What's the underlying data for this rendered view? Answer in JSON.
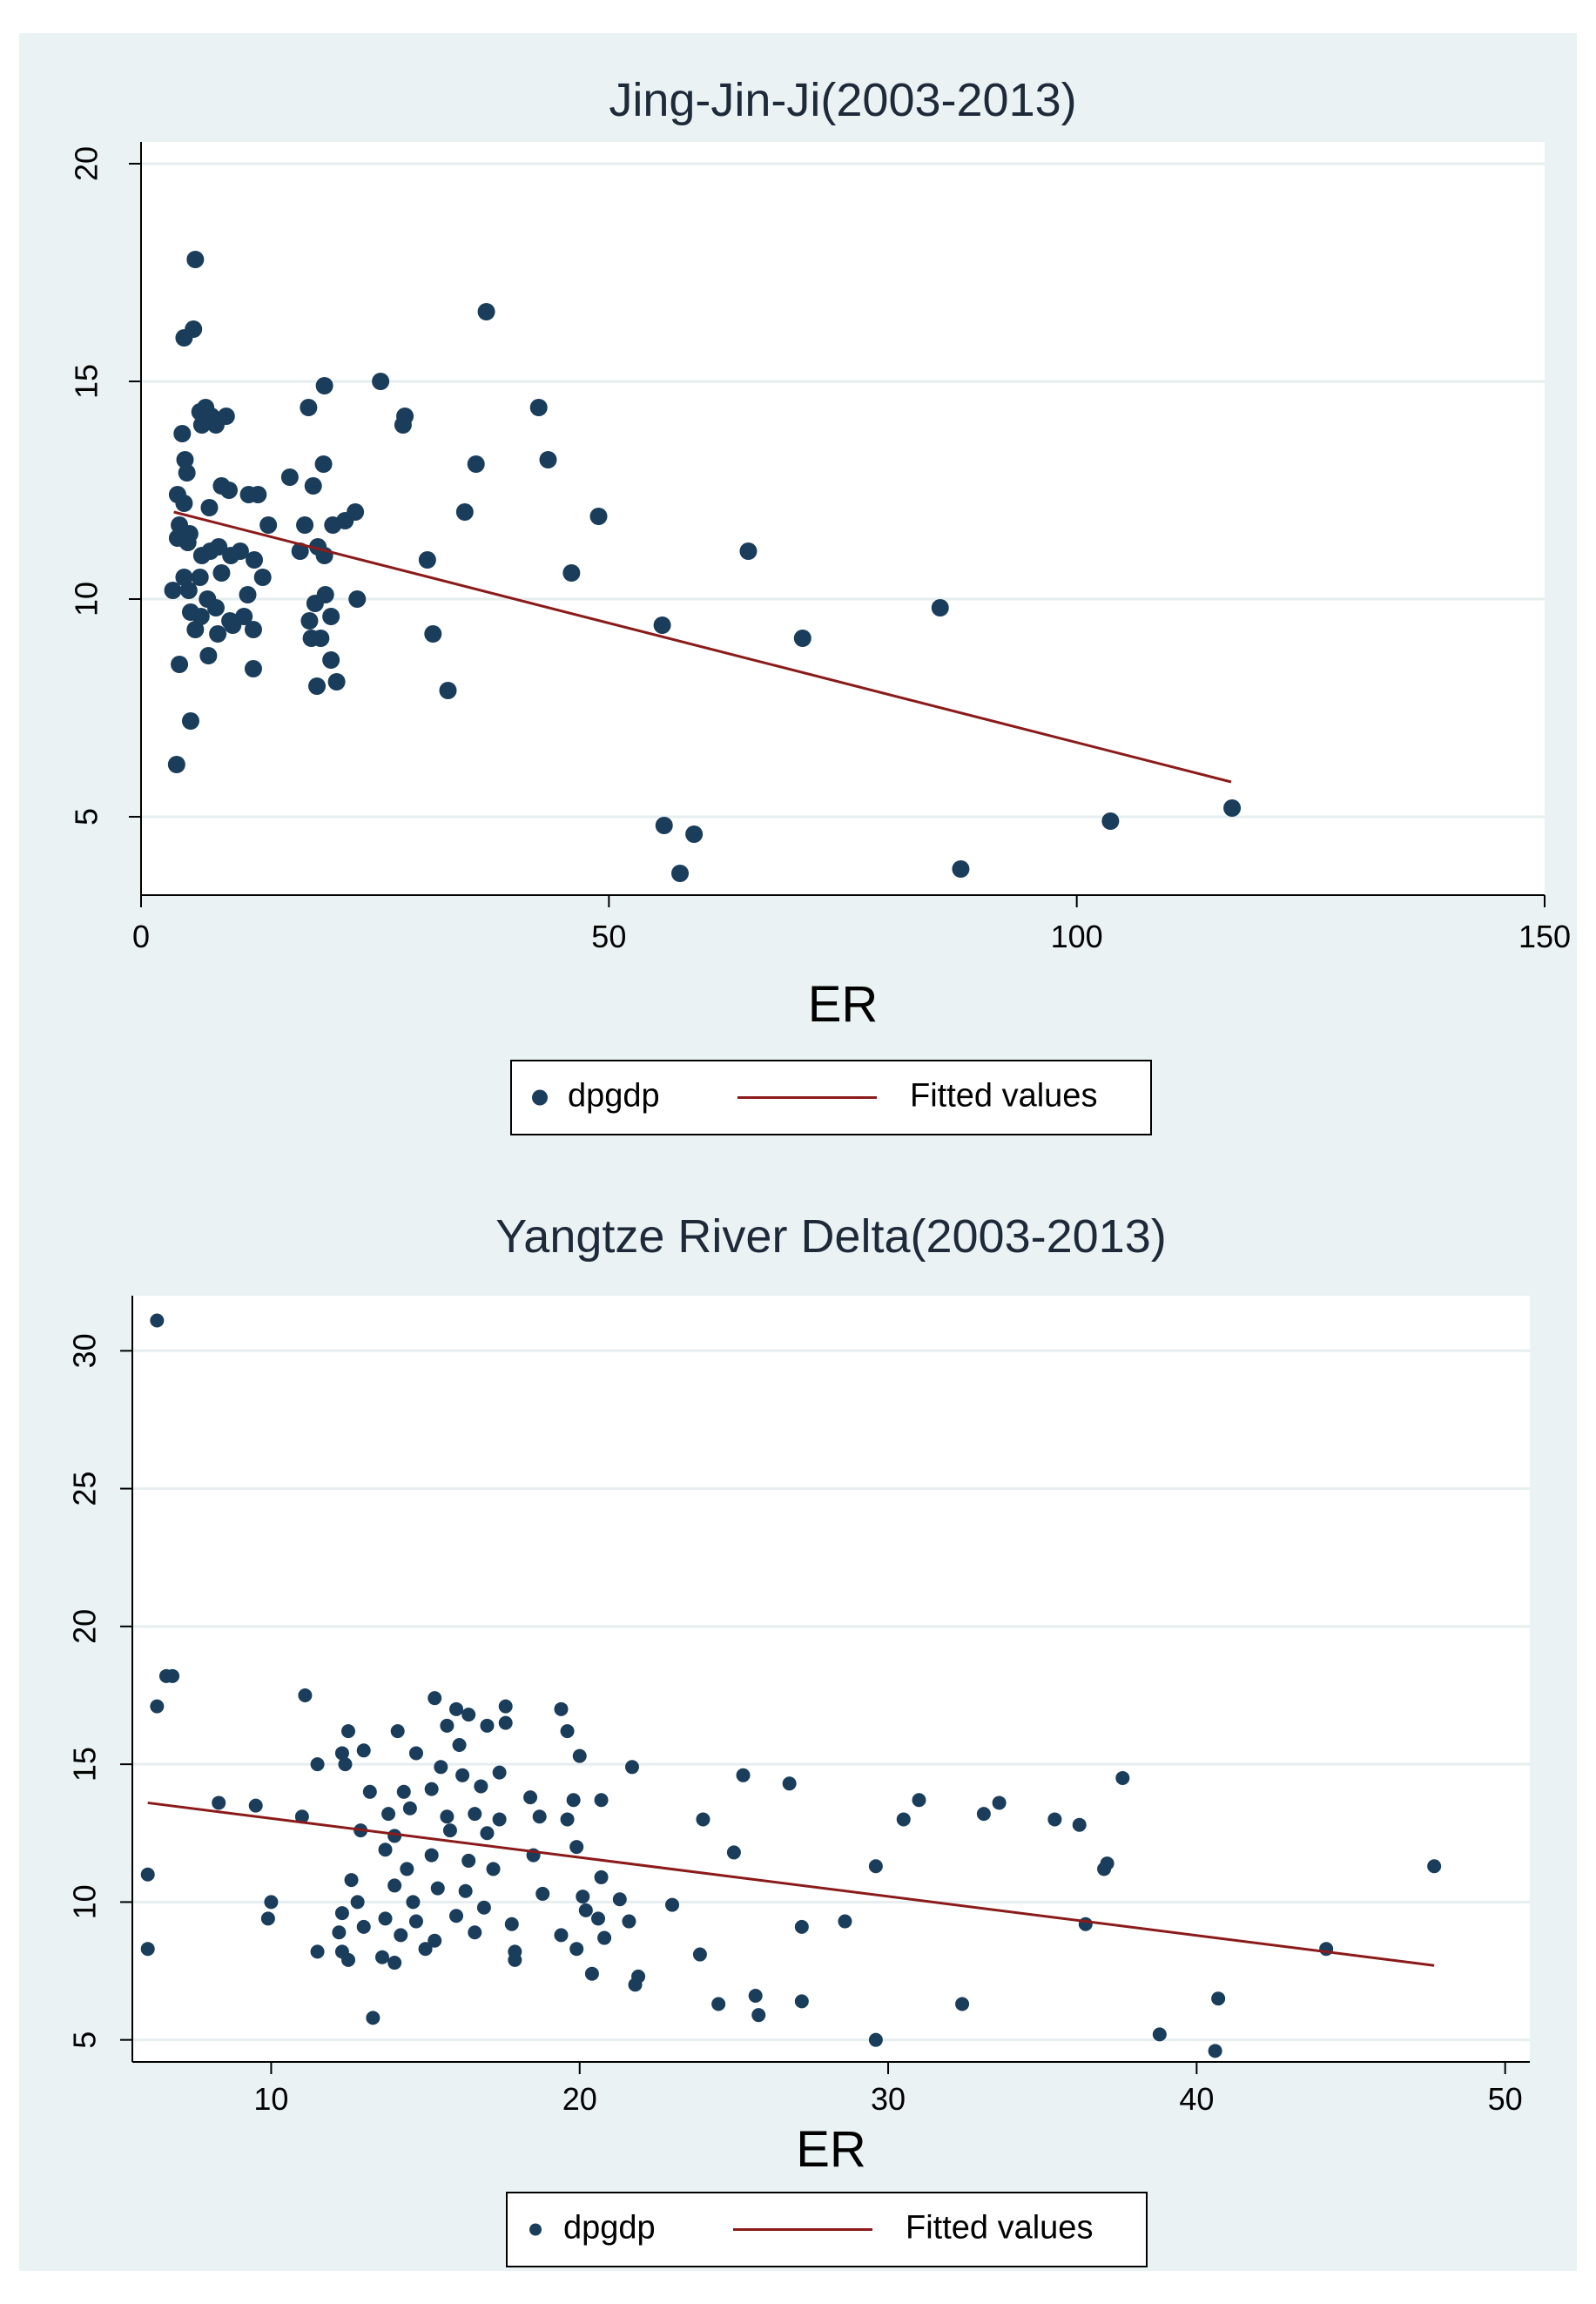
{
  "chart_data": [
    {
      "type": "scatter",
      "title": "Jing-Jin-Ji(2003-2013)",
      "xlabel": "ER",
      "ylabel": "",
      "xlim": [
        0,
        150
      ],
      "ylim": [
        3.2,
        20.5
      ],
      "xticks": [
        0,
        50,
        100,
        150
      ],
      "yticks": [
        5,
        10,
        15,
        20
      ],
      "grid": true,
      "legend_position": "bottom",
      "colors": {
        "points": "#1a3d5c",
        "fit": "#8b1a1a",
        "grid": "#e6eef0",
        "plot_bg": "#ffffff",
        "panel_bg": "#eaf2f3"
      },
      "legend": [
        "dpgdp",
        "Fitted values"
      ],
      "series": [
        {
          "name": "dpgdp",
          "kind": "scatter",
          "points": [
            [
              5.8,
              17.8
            ],
            [
              5.6,
              16.2
            ],
            [
              4.6,
              16.0
            ],
            [
              36.9,
              16.6
            ],
            [
              25.6,
              15.0
            ],
            [
              19.6,
              14.9
            ],
            [
              28.2,
              14.2
            ],
            [
              28.0,
              14.0
            ],
            [
              42.5,
              14.4
            ],
            [
              17.9,
              14.4
            ],
            [
              6.3,
              14.3
            ],
            [
              6.9,
              14.4
            ],
            [
              7.5,
              14.2
            ],
            [
              8.0,
              14.0
            ],
            [
              6.5,
              14.0
            ],
            [
              9.1,
              14.2
            ],
            [
              4.4,
              13.8
            ],
            [
              43.5,
              13.2
            ],
            [
              35.8,
              13.1
            ],
            [
              4.7,
              13.2
            ],
            [
              19.5,
              13.1
            ],
            [
              4.9,
              12.9
            ],
            [
              15.9,
              12.8
            ],
            [
              3.9,
              12.4
            ],
            [
              4.6,
              12.2
            ],
            [
              8.6,
              12.6
            ],
            [
              9.4,
              12.5
            ],
            [
              11.5,
              12.4
            ],
            [
              12.5,
              12.4
            ],
            [
              18.4,
              12.6
            ],
            [
              4.1,
              11.7
            ],
            [
              5.2,
              11.5
            ],
            [
              7.3,
              12.1
            ],
            [
              13.6,
              11.7
            ],
            [
              17.5,
              11.7
            ],
            [
              20.5,
              11.7
            ],
            [
              21.8,
              11.8
            ],
            [
              22.9,
              12.0
            ],
            [
              34.6,
              12.0
            ],
            [
              48.9,
              11.9
            ],
            [
              64.9,
              11.1
            ],
            [
              30.6,
              10.9
            ],
            [
              46.0,
              10.6
            ],
            [
              3.9,
              11.4
            ],
            [
              5.0,
              11.3
            ],
            [
              6.5,
              11.0
            ],
            [
              7.4,
              11.1
            ],
            [
              8.3,
              11.2
            ],
            [
              9.6,
              11.0
            ],
            [
              10.6,
              11.1
            ],
            [
              12.1,
              10.9
            ],
            [
              17.0,
              11.1
            ],
            [
              18.9,
              11.2
            ],
            [
              19.6,
              11.0
            ],
            [
              4.6,
              10.5
            ],
            [
              6.3,
              10.5
            ],
            [
              8.6,
              10.6
            ],
            [
              13.0,
              10.5
            ],
            [
              3.4,
              10.2
            ],
            [
              5.1,
              10.2
            ],
            [
              7.1,
              10.0
            ],
            [
              11.4,
              10.1
            ],
            [
              19.7,
              10.1
            ],
            [
              23.1,
              10.0
            ],
            [
              18.6,
              9.9
            ],
            [
              5.3,
              9.7
            ],
            [
              6.4,
              9.6
            ],
            [
              8.0,
              9.8
            ],
            [
              9.5,
              9.5
            ],
            [
              11.0,
              9.6
            ],
            [
              18.0,
              9.5
            ],
            [
              20.3,
              9.6
            ],
            [
              55.7,
              9.4
            ],
            [
              85.4,
              9.8
            ],
            [
              70.7,
              9.1
            ],
            [
              31.2,
              9.2
            ],
            [
              5.8,
              9.3
            ],
            [
              8.2,
              9.2
            ],
            [
              9.8,
              9.4
            ],
            [
              12.0,
              9.3
            ],
            [
              18.2,
              9.1
            ],
            [
              19.2,
              9.1
            ],
            [
              7.2,
              8.7
            ],
            [
              20.3,
              8.6
            ],
            [
              4.1,
              8.5
            ],
            [
              12.0,
              8.4
            ],
            [
              18.8,
              8.0
            ],
            [
              20.9,
              8.1
            ],
            [
              32.8,
              7.9
            ],
            [
              5.3,
              7.2
            ],
            [
              3.8,
              6.2
            ],
            [
              116.6,
              5.2
            ],
            [
              103.6,
              4.9
            ],
            [
              55.9,
              4.8
            ],
            [
              59.1,
              4.6
            ],
            [
              57.6,
              3.7
            ],
            [
              87.6,
              3.8
            ]
          ]
        },
        {
          "name": "Fitted values",
          "kind": "line",
          "points": [
            [
              3.5,
              12.0
            ],
            [
              116.5,
              5.8
            ]
          ]
        }
      ]
    },
    {
      "type": "scatter",
      "title": "Yangtze River Delta(2003-2013)",
      "xlabel": "ER",
      "ylabel": "",
      "xlim": [
        5.5,
        50.8
      ],
      "ylim": [
        4.2,
        32.0
      ],
      "xticks": [
        10,
        20,
        30,
        40,
        50
      ],
      "yticks": [
        5,
        10,
        15,
        20,
        25,
        30
      ],
      "grid": true,
      "legend_position": "bottom",
      "colors": {
        "points": "#1a3d5c",
        "fit": "#8b1a1a",
        "grid": "#e6eef0",
        "plot_bg": "#ffffff",
        "panel_bg": "#eaf2f3"
      },
      "legend": [
        "dpgdp",
        "Fitted values"
      ],
      "series": [
        {
          "name": "dpgdp",
          "kind": "scatter",
          "points": [
            [
              6.3,
              31.1
            ],
            [
              6.6,
              18.2
            ],
            [
              6.8,
              18.2
            ],
            [
              6.3,
              17.1
            ],
            [
              11.1,
              17.5
            ],
            [
              15.3,
              17.4
            ],
            [
              16.0,
              17.0
            ],
            [
              16.4,
              16.8
            ],
            [
              17.6,
              17.1
            ],
            [
              19.4,
              17.0
            ],
            [
              12.5,
              16.2
            ],
            [
              14.1,
              16.2
            ],
            [
              15.7,
              16.4
            ],
            [
              17.0,
              16.4
            ],
            [
              19.6,
              16.2
            ],
            [
              12.3,
              15.4
            ],
            [
              13.0,
              15.5
            ],
            [
              14.7,
              15.4
            ],
            [
              16.1,
              15.7
            ],
            [
              17.6,
              16.5
            ],
            [
              11.5,
              15.0
            ],
            [
              12.4,
              15.0
            ],
            [
              15.5,
              14.9
            ],
            [
              16.2,
              14.6
            ],
            [
              17.4,
              14.7
            ],
            [
              20.0,
              15.3
            ],
            [
              21.7,
              14.9
            ],
            [
              25.3,
              14.6
            ],
            [
              26.8,
              14.3
            ],
            [
              37.6,
              14.5
            ],
            [
              13.2,
              14.0
            ],
            [
              14.3,
              14.0
            ],
            [
              15.2,
              14.1
            ],
            [
              16.8,
              14.2
            ],
            [
              18.4,
              13.8
            ],
            [
              19.8,
              13.7
            ],
            [
              20.7,
              13.7
            ],
            [
              31.0,
              13.7
            ],
            [
              33.6,
              13.6
            ],
            [
              8.3,
              13.6
            ],
            [
              9.5,
              13.5
            ],
            [
              13.8,
              13.2
            ],
            [
              14.5,
              13.4
            ],
            [
              15.7,
              13.1
            ],
            [
              16.6,
              13.2
            ],
            [
              17.4,
              13.0
            ],
            [
              18.7,
              13.1
            ],
            [
              19.6,
              13.0
            ],
            [
              24.0,
              13.0
            ],
            [
              30.5,
              13.0
            ],
            [
              33.1,
              13.2
            ],
            [
              35.4,
              13.0
            ],
            [
              36.2,
              12.8
            ],
            [
              11.0,
              13.1
            ],
            [
              12.9,
              12.6
            ],
            [
              14.0,
              12.4
            ],
            [
              15.8,
              12.6
            ],
            [
              17.0,
              12.5
            ],
            [
              19.9,
              12.0
            ],
            [
              13.7,
              11.9
            ],
            [
              15.2,
              11.7
            ],
            [
              16.4,
              11.5
            ],
            [
              18.5,
              11.7
            ],
            [
              25.0,
              11.8
            ],
            [
              14.4,
              11.2
            ],
            [
              17.2,
              11.2
            ],
            [
              20.7,
              10.9
            ],
            [
              29.6,
              11.3
            ],
            [
              37.1,
              11.4
            ],
            [
              37.0,
              11.2
            ],
            [
              47.7,
              11.3
            ],
            [
              6.0,
              11.0
            ],
            [
              12.6,
              10.8
            ],
            [
              14.0,
              10.6
            ],
            [
              15.4,
              10.5
            ],
            [
              16.3,
              10.4
            ],
            [
              18.8,
              10.3
            ],
            [
              20.1,
              10.2
            ],
            [
              21.3,
              10.1
            ],
            [
              10.0,
              10.0
            ],
            [
              12.8,
              10.0
            ],
            [
              14.6,
              10.0
            ],
            [
              16.9,
              9.8
            ],
            [
              20.2,
              9.7
            ],
            [
              23.0,
              9.9
            ],
            [
              9.9,
              9.4
            ],
            [
              12.3,
              9.6
            ],
            [
              13.7,
              9.4
            ],
            [
              14.7,
              9.3
            ],
            [
              16.0,
              9.5
            ],
            [
              17.8,
              9.2
            ],
            [
              20.6,
              9.4
            ],
            [
              21.6,
              9.3
            ],
            [
              12.2,
              8.9
            ],
            [
              13.0,
              9.1
            ],
            [
              14.2,
              8.8
            ],
            [
              15.3,
              8.6
            ],
            [
              16.6,
              8.9
            ],
            [
              19.4,
              8.8
            ],
            [
              20.8,
              8.7
            ],
            [
              11.5,
              8.2
            ],
            [
              12.3,
              8.2
            ],
            [
              13.6,
              8.0
            ],
            [
              15.0,
              8.3
            ],
            [
              17.9,
              7.9
            ],
            [
              19.9,
              8.3
            ],
            [
              23.9,
              8.1
            ],
            [
              28.6,
              9.3
            ],
            [
              27.2,
              9.1
            ],
            [
              36.4,
              9.2
            ],
            [
              44.2,
              8.3
            ],
            [
              6.0,
              8.3
            ],
            [
              12.5,
              7.9
            ],
            [
              14.0,
              7.8
            ],
            [
              17.9,
              8.2
            ],
            [
              20.4,
              7.4
            ],
            [
              21.9,
              7.3
            ],
            [
              21.8,
              7.0
            ],
            [
              24.5,
              6.3
            ],
            [
              25.7,
              6.6
            ],
            [
              25.8,
              5.9
            ],
            [
              27.2,
              6.4
            ],
            [
              32.4,
              6.3
            ],
            [
              40.7,
              6.5
            ],
            [
              13.3,
              5.8
            ],
            [
              29.6,
              5.0
            ],
            [
              38.8,
              5.2
            ],
            [
              40.6,
              4.6
            ]
          ]
        },
        {
          "name": "Fitted values",
          "kind": "line",
          "points": [
            [
              6.0,
              13.6
            ],
            [
              47.7,
              7.7
            ]
          ]
        }
      ]
    }
  ]
}
